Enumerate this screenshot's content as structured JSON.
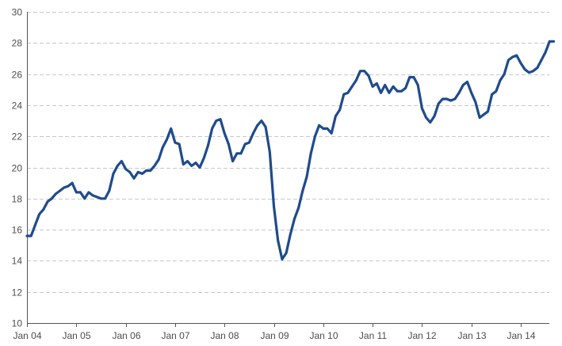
{
  "chart_data": {
    "type": "line",
    "title": "",
    "xlabel": "",
    "ylabel": "",
    "ylim": [
      10,
      30
    ],
    "yticks": [
      10,
      12,
      14,
      16,
      18,
      20,
      22,
      24,
      26,
      28,
      30
    ],
    "xticks": [
      "Jan 04",
      "Jan 05",
      "Jan 06",
      "Jan 07",
      "Jan 08",
      "Jan 09",
      "Jan 10",
      "Jan 11",
      "Jan 12",
      "Jan 13",
      "Jan 14"
    ],
    "grid": "horizontal dashed",
    "legend": "none",
    "line_color": "#1f4b8e",
    "series": [
      {
        "x": [
          "2004-01",
          "2004-02",
          "2004-03",
          "2004-04",
          "2004-05",
          "2004-06",
          "2004-07",
          "2004-08",
          "2004-09",
          "2004-10",
          "2004-11",
          "2004-12",
          "2005-01",
          "2005-02",
          "2005-03",
          "2005-04",
          "2005-05",
          "2005-06",
          "2005-07",
          "2005-08",
          "2005-09",
          "2005-10",
          "2005-11",
          "2005-12",
          "2006-01",
          "2006-02",
          "2006-03",
          "2006-04",
          "2006-05",
          "2006-06",
          "2006-07",
          "2006-08",
          "2006-09",
          "2006-10",
          "2006-11",
          "2006-12",
          "2007-01",
          "2007-02",
          "2007-03",
          "2007-04",
          "2007-05",
          "2007-06",
          "2007-07",
          "2007-08",
          "2007-09",
          "2007-10",
          "2007-11",
          "2007-12",
          "2008-01",
          "2008-02",
          "2008-03",
          "2008-04",
          "2008-05",
          "2008-06",
          "2008-07",
          "2008-08",
          "2008-09",
          "2008-10",
          "2008-11",
          "2008-12",
          "2009-01",
          "2009-02",
          "2009-03",
          "2009-04",
          "2009-05",
          "2009-06",
          "2009-07",
          "2009-08",
          "2009-09",
          "2009-10",
          "2009-11",
          "2009-12",
          "2010-01",
          "2010-02",
          "2010-03",
          "2010-04",
          "2010-05",
          "2010-06",
          "2010-07",
          "2010-08",
          "2010-09",
          "2010-10",
          "2010-11",
          "2010-12",
          "2011-01",
          "2011-02",
          "2011-03",
          "2011-04",
          "2011-05",
          "2011-06",
          "2011-07",
          "2011-08",
          "2011-09",
          "2011-10",
          "2011-11",
          "2011-12",
          "2012-01",
          "2012-02",
          "2012-03",
          "2012-04",
          "2012-05",
          "2012-06",
          "2012-07",
          "2012-08",
          "2012-09",
          "2012-10",
          "2012-11",
          "2012-12",
          "2013-01",
          "2013-02",
          "2013-03",
          "2013-04",
          "2013-05",
          "2013-06",
          "2013-07",
          "2013-08",
          "2013-09",
          "2013-10",
          "2013-11",
          "2013-12",
          "2014-01",
          "2014-02",
          "2014-03",
          "2014-04",
          "2014-05",
          "2014-06",
          "2014-07",
          "2014-08",
          "2014-09"
        ],
        "values": [
          15.6,
          15.6,
          16.3,
          17.0,
          17.3,
          17.8,
          18.0,
          18.3,
          18.5,
          18.7,
          18.8,
          19.0,
          18.4,
          18.4,
          18.0,
          18.4,
          18.2,
          18.1,
          18.0,
          18.0,
          18.5,
          19.6,
          20.1,
          20.4,
          19.9,
          19.7,
          19.3,
          19.7,
          19.6,
          19.8,
          19.8,
          20.1,
          20.5,
          21.3,
          21.8,
          22.5,
          21.6,
          21.5,
          20.2,
          20.4,
          20.1,
          20.3,
          20.0,
          20.6,
          21.4,
          22.5,
          23.0,
          23.1,
          22.2,
          21.5,
          20.4,
          20.9,
          20.9,
          21.5,
          21.6,
          22.2,
          22.7,
          23.0,
          22.6,
          21.0,
          17.5,
          15.3,
          14.1,
          14.5,
          15.7,
          16.7,
          17.4,
          18.5,
          19.4,
          20.9,
          22.0,
          22.7,
          22.5,
          22.5,
          22.2,
          23.3,
          23.7,
          24.7,
          24.8,
          25.2,
          25.6,
          26.2,
          26.2,
          25.9,
          25.2,
          25.4,
          24.8,
          25.3,
          24.8,
          25.2,
          24.9,
          24.9,
          25.1,
          25.8,
          25.8,
          25.3,
          23.8,
          23.2,
          22.9,
          23.3,
          24.1,
          24.4,
          24.4,
          24.3,
          24.4,
          24.8,
          25.3,
          25.5,
          24.8,
          24.2,
          23.2,
          23.4,
          23.6,
          24.7,
          24.9,
          25.6,
          26.0,
          26.9,
          27.1,
          27.2,
          26.7,
          26.3,
          26.1,
          26.2,
          26.4,
          26.9,
          27.4,
          28.1,
          28.1
        ]
      }
    ]
  }
}
